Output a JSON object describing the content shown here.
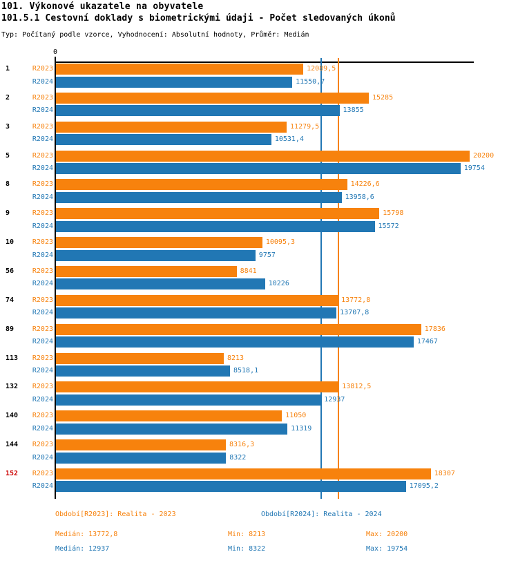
{
  "header": {
    "title": "101. Výkonové ukazatele na obyvatele",
    "subtitle": "101.5.1 Cestovní doklady s biometrickými údaji - Počet sledovaných úkonů",
    "meta": "Typ: Počítaný podle vzorce, Vyhodnocení: Absolutní hodnoty, Průměr: Medián"
  },
  "colors": {
    "orange": "#f7820d",
    "blue": "#2177b4",
    "highlight_red": "#cc0000",
    "axis_black": "#000000"
  },
  "chart_data": {
    "type": "bar",
    "orientation": "horizontal",
    "axis_zero_label": "0",
    "x_axis_range": [
      0,
      20400
    ],
    "grid": false,
    "categories": [
      "1",
      "2",
      "3",
      "5",
      "8",
      "9",
      "10",
      "56",
      "74",
      "89",
      "113",
      "132",
      "140",
      "144",
      "152"
    ],
    "highlight_category": "152",
    "series": [
      {
        "name": "R2023",
        "color": "#f7820d",
        "values": [
          12089.5,
          15285,
          11279.5,
          20200,
          14226.6,
          15798,
          10095.3,
          8841,
          13772.8,
          17836,
          8213,
          13812.5,
          11050,
          8316.3,
          18307
        ],
        "labels": [
          "12089,5",
          "15285",
          "11279,5",
          "20200",
          "14226,6",
          "15798",
          "10095,3",
          "8841",
          "13772,8",
          "17836",
          "8213",
          "13812,5",
          "11050",
          "8316,3",
          "18307"
        ]
      },
      {
        "name": "R2024",
        "color": "#2177b4",
        "values": [
          11550.7,
          13855,
          10531.4,
          19754,
          13958.6,
          15572,
          9757,
          10226,
          13707.8,
          17467,
          8518.1,
          12937,
          11319,
          8322,
          17095.2
        ],
        "labels": [
          "11550,7",
          "13855",
          "10531,4",
          "19754",
          "13958,6",
          "15572",
          "9757",
          "10226",
          "13707,8",
          "17467",
          "8518,1",
          "12937",
          "11319",
          "8322",
          "17095,2"
        ]
      }
    ],
    "median_lines": [
      {
        "series": "R2023",
        "value": 13772.8,
        "color": "#f7820d"
      },
      {
        "series": "R2024",
        "value": 12937,
        "color": "#2177b4"
      }
    ]
  },
  "legend": {
    "r2023": "Období[R2023]: Realita - 2023",
    "r2024": "Období[R2024]: Realita - 2024"
  },
  "stats": {
    "r2023": {
      "median": "Medián: 13772,8",
      "min": "Min: 8213",
      "max": "Max: 20200"
    },
    "r2024": {
      "median": "Medián: 12937",
      "min": "Min: 8322",
      "max": "Max: 19754"
    }
  }
}
